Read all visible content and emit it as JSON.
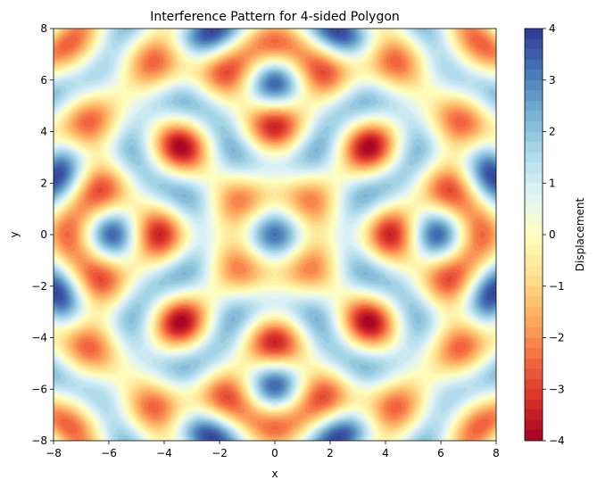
{
  "chart_data": {
    "type": "heatmap",
    "title": "Interference Pattern for 4-sided Polygon",
    "xlabel": "x",
    "ylabel": "y",
    "xlim": [
      -8,
      8
    ],
    "ylim": [
      -8,
      8
    ],
    "x_ticks": [
      "−8",
      "−6",
      "−4",
      "−2",
      "0",
      "2",
      "4",
      "6",
      "8"
    ],
    "y_ticks": [
      "−8",
      "−6",
      "−4",
      "−2",
      "0",
      "2",
      "4",
      "6",
      "8"
    ],
    "x_tick_values": [
      -8,
      -6,
      -4,
      -2,
      0,
      2,
      4,
      6,
      8
    ],
    "y_tick_values": [
      -8,
      -6,
      -4,
      -2,
      0,
      2,
      4,
      6,
      8
    ],
    "colorbar": {
      "label": "Displacement",
      "colormap": "RdYlBu",
      "range": [
        -4,
        4
      ],
      "ticks": [
        "−4",
        "−3",
        "−2",
        "−1",
        "0",
        "1",
        "2",
        "3",
        "4"
      ],
      "tick_values": [
        -4,
        -3,
        -2,
        -1,
        0,
        1,
        2,
        3,
        4
      ],
      "levels": 40
    },
    "grid": false
  }
}
